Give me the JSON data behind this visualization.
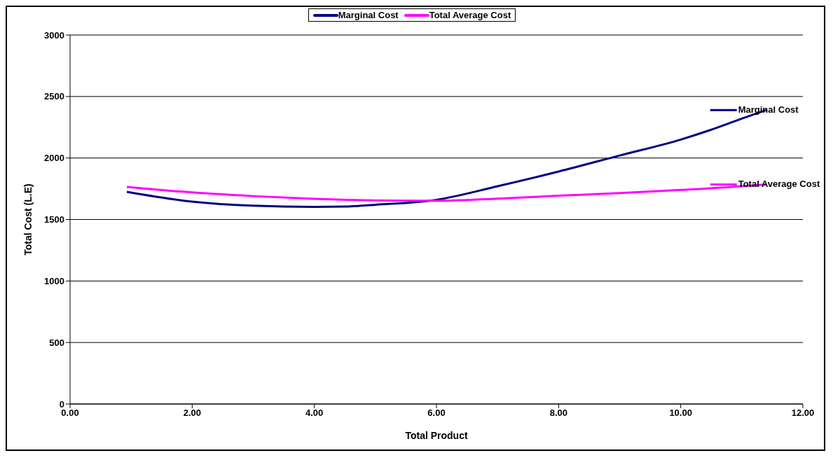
{
  "chart_data": {
    "type": "line",
    "xlabel": "Total Product",
    "ylabel": "Total Cost (L.E)",
    "xlim": [
      0,
      12
    ],
    "xticks": [
      {
        "value": 0,
        "label": "0.00"
      },
      {
        "value": 2,
        "label": "2.00"
      },
      {
        "value": 4,
        "label": "4.00"
      },
      {
        "value": 6,
        "label": "6.00"
      },
      {
        "value": 8,
        "label": "8.00"
      },
      {
        "value": 10,
        "label": "10.00"
      },
      {
        "value": 12,
        "label": "12.00"
      }
    ],
    "ylim": [
      0,
      3000
    ],
    "yticks": [
      0,
      500,
      1000,
      1500,
      2000,
      2500,
      3000
    ],
    "grid": "y",
    "legend": "top",
    "marker": "none",
    "line_style": "solid",
    "series": [
      {
        "name": "Marginal Cost",
        "color": "#000080",
        "x": [
          0.93,
          2,
          3,
          4,
          4.5,
          5,
          6,
          7,
          8,
          9,
          10,
          10.5,
          11,
          11.4
        ],
        "values": [
          1725,
          1645,
          1612,
          1603,
          1605,
          1620,
          1660,
          1770,
          1890,
          2020,
          2150,
          2230,
          2320,
          2390
        ]
      },
      {
        "name": "Total Average Cost",
        "color": "#ff00ff",
        "x": [
          0.93,
          2,
          3,
          4,
          5,
          6,
          7,
          8,
          9,
          10,
          11,
          11.4
        ],
        "values": [
          1765,
          1720,
          1690,
          1668,
          1655,
          1652,
          1670,
          1693,
          1715,
          1740,
          1770,
          1785
        ]
      }
    ]
  }
}
